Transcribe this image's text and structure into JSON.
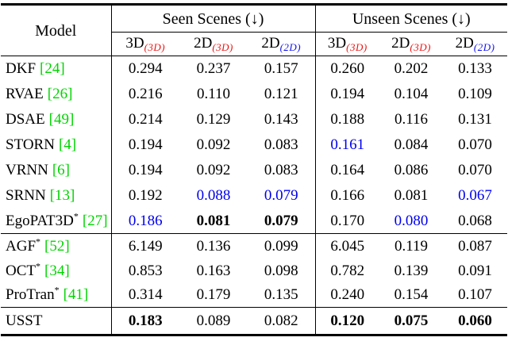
{
  "colors": {
    "citation_green": "#00d400",
    "subscript_red": "#ee1111",
    "subscript_blue": "#1111ee",
    "best_value_blue": "#0000ee",
    "text": "#000000",
    "rule": "#000000"
  },
  "table": {
    "header": {
      "model_label": "Model",
      "groups": [
        {
          "label": "Seen Scenes (↓)"
        },
        {
          "label": "Unseen Scenes (↓)"
        }
      ],
      "subcolumns": [
        {
          "base": "3D",
          "sub": "(3D)",
          "color": "red"
        },
        {
          "base": "2D",
          "sub": "(3D)",
          "color": "red"
        },
        {
          "base": "2D",
          "sub": "(2D)",
          "color": "blue"
        },
        {
          "base": "3D",
          "sub": "(3D)",
          "color": "red"
        },
        {
          "base": "2D",
          "sub": "(3D)",
          "color": "red"
        },
        {
          "base": "2D",
          "sub": "(2D)",
          "color": "blue"
        }
      ]
    },
    "rows": [
      {
        "model": "DKF",
        "star": false,
        "cite": "[24]",
        "sep_before": false,
        "values": [
          {
            "text": "0.294",
            "style": "normal"
          },
          {
            "text": "0.237",
            "style": "normal"
          },
          {
            "text": "0.157",
            "style": "normal"
          },
          {
            "text": "0.260",
            "style": "normal"
          },
          {
            "text": "0.202",
            "style": "normal"
          },
          {
            "text": "0.133",
            "style": "normal"
          }
        ]
      },
      {
        "model": "RVAE",
        "star": false,
        "cite": "[26]",
        "sep_before": false,
        "values": [
          {
            "text": "0.216",
            "style": "normal"
          },
          {
            "text": "0.110",
            "style": "normal"
          },
          {
            "text": "0.121",
            "style": "normal"
          },
          {
            "text": "0.194",
            "style": "normal"
          },
          {
            "text": "0.104",
            "style": "normal"
          },
          {
            "text": "0.109",
            "style": "normal"
          }
        ]
      },
      {
        "model": "DSAE",
        "star": false,
        "cite": "[49]",
        "sep_before": false,
        "values": [
          {
            "text": "0.214",
            "style": "normal"
          },
          {
            "text": "0.129",
            "style": "normal"
          },
          {
            "text": "0.143",
            "style": "normal"
          },
          {
            "text": "0.188",
            "style": "normal"
          },
          {
            "text": "0.116",
            "style": "normal"
          },
          {
            "text": "0.131",
            "style": "normal"
          }
        ]
      },
      {
        "model": "STORN",
        "star": false,
        "cite": "[4]",
        "sep_before": false,
        "values": [
          {
            "text": "0.194",
            "style": "normal"
          },
          {
            "text": "0.092",
            "style": "normal"
          },
          {
            "text": "0.083",
            "style": "normal"
          },
          {
            "text": "0.161",
            "style": "blue"
          },
          {
            "text": "0.084",
            "style": "normal"
          },
          {
            "text": "0.070",
            "style": "normal"
          }
        ]
      },
      {
        "model": "VRNN",
        "star": false,
        "cite": "[6]",
        "sep_before": false,
        "values": [
          {
            "text": "0.194",
            "style": "normal"
          },
          {
            "text": "0.092",
            "style": "normal"
          },
          {
            "text": "0.083",
            "style": "normal"
          },
          {
            "text": "0.164",
            "style": "normal"
          },
          {
            "text": "0.086",
            "style": "normal"
          },
          {
            "text": "0.070",
            "style": "normal"
          }
        ]
      },
      {
        "model": "SRNN",
        "star": false,
        "cite": "[13]",
        "sep_before": false,
        "values": [
          {
            "text": "0.192",
            "style": "normal"
          },
          {
            "text": "0.088",
            "style": "blue"
          },
          {
            "text": "0.079",
            "style": "blue"
          },
          {
            "text": "0.166",
            "style": "normal"
          },
          {
            "text": "0.081",
            "style": "normal"
          },
          {
            "text": "0.067",
            "style": "blue"
          }
        ]
      },
      {
        "model": "EgoPAT3D",
        "star": true,
        "cite": "[27]",
        "sep_before": false,
        "values": [
          {
            "text": "0.186",
            "style": "blue"
          },
          {
            "text": "0.081",
            "style": "bold"
          },
          {
            "text": "0.079",
            "style": "bold"
          },
          {
            "text": "0.170",
            "style": "normal"
          },
          {
            "text": "0.080",
            "style": "blue"
          },
          {
            "text": "0.068",
            "style": "normal"
          }
        ]
      },
      {
        "model": "AGF",
        "star": true,
        "cite": "[52]",
        "sep_before": true,
        "mid": true,
        "values": [
          {
            "text": "6.149",
            "style": "normal"
          },
          {
            "text": "0.136",
            "style": "normal"
          },
          {
            "text": "0.099",
            "style": "normal"
          },
          {
            "text": "6.045",
            "style": "normal"
          },
          {
            "text": "0.119",
            "style": "normal"
          },
          {
            "text": "0.087",
            "style": "normal"
          }
        ]
      },
      {
        "model": "OCT",
        "star": true,
        "cite": "[34]",
        "sep_before": false,
        "mid": true,
        "values": [
          {
            "text": "0.853",
            "style": "normal"
          },
          {
            "text": "0.163",
            "style": "normal"
          },
          {
            "text": "0.098",
            "style": "normal"
          },
          {
            "text": "0.782",
            "style": "normal"
          },
          {
            "text": "0.139",
            "style": "normal"
          },
          {
            "text": "0.091",
            "style": "normal"
          }
        ]
      },
      {
        "model": "ProTran",
        "star": true,
        "cite": "[41]",
        "sep_before": false,
        "mid": true,
        "values": [
          {
            "text": "0.314",
            "style": "normal"
          },
          {
            "text": "0.179",
            "style": "normal"
          },
          {
            "text": "0.135",
            "style": "normal"
          },
          {
            "text": "0.240",
            "style": "normal"
          },
          {
            "text": "0.154",
            "style": "normal"
          },
          {
            "text": "0.107",
            "style": "normal"
          }
        ]
      },
      {
        "model": "USST",
        "star": false,
        "cite": "",
        "sep_before": true,
        "tall": true,
        "values": [
          {
            "text": "0.183",
            "style": "bold"
          },
          {
            "text": "0.089",
            "style": "normal"
          },
          {
            "text": "0.082",
            "style": "normal"
          },
          {
            "text": "0.120",
            "style": "bold"
          },
          {
            "text": "0.075",
            "style": "bold"
          },
          {
            "text": "0.060",
            "style": "bold"
          }
        ]
      }
    ]
  }
}
